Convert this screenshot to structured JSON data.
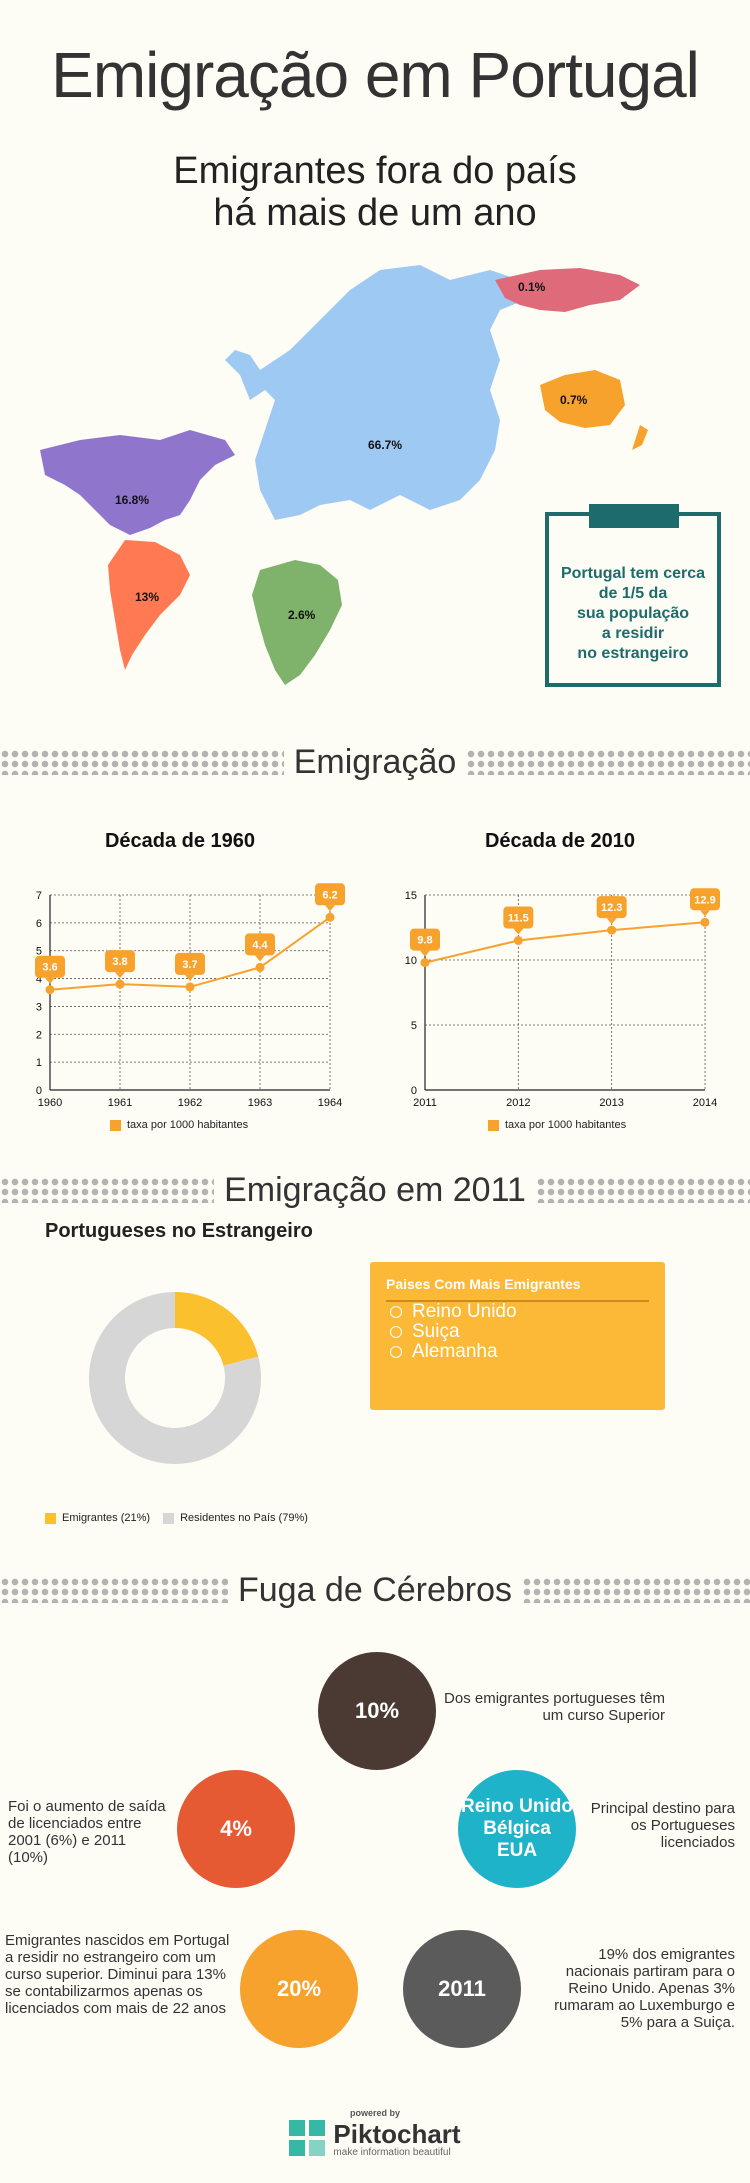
{
  "header": {
    "title": "Emigração em Portugal",
    "subtitle_line1": "Emigrantes fora do país",
    "subtitle_line2": "há mais de um ano"
  },
  "map": {
    "regions": [
      {
        "name": "north-america",
        "value": "16.8%",
        "color": "#8f76cc"
      },
      {
        "name": "south-america",
        "value": "13%",
        "color": "#ff7a52"
      },
      {
        "name": "europe",
        "value": "66.7%",
        "color": "#9ec9f3"
      },
      {
        "name": "africa",
        "value": "2.6%",
        "color": "#7fb26a"
      },
      {
        "name": "asia",
        "value": "0.1%",
        "color": "#df6a7a"
      },
      {
        "name": "oceania",
        "value": "0.7%",
        "color": "#f6a22d"
      }
    ],
    "callout_line1": "Portugal tem cerca",
    "callout_line2": "de 1/5 da",
    "callout_line3": "sua população",
    "callout_line4": "a residir",
    "callout_line5": "no estrangeiro"
  },
  "sections": {
    "emigracao": "Emigração",
    "emigracao2011": "Emigração em 2011",
    "fuga": "Fuga de Cérebros"
  },
  "chart_data": [
    {
      "type": "line",
      "title": "Década de 1960",
      "x": [
        1960,
        1961,
        1962,
        1963,
        1964
      ],
      "series": [
        {
          "name": "taxa por 1000 habitantes",
          "values": [
            3.6,
            3.8,
            3.7,
            4.4,
            6.2
          ]
        }
      ],
      "ylim": [
        0,
        7
      ],
      "yticks": [
        0,
        1,
        2,
        3,
        4,
        5,
        6,
        7
      ],
      "grid": true,
      "legend": "bottom",
      "color": "#f6a22d"
    },
    {
      "type": "line",
      "title": "Década de 2010",
      "x": [
        2011,
        2012,
        2013,
        2014
      ],
      "series": [
        {
          "name": "taxa por 1000 habitantes",
          "values": [
            9.8,
            11.5,
            12.3,
            12.9
          ]
        }
      ],
      "ylim": [
        0,
        15
      ],
      "yticks": [
        0,
        5,
        10,
        15
      ],
      "grid": true,
      "legend": "bottom",
      "color": "#f6a22d"
    },
    {
      "type": "pie",
      "title": "Portugueses no Estrangeiro",
      "categories": [
        "Emigrantes (21%)",
        "Residentes no País (79%)"
      ],
      "values": [
        21,
        79
      ],
      "colors": [
        "#fbc02d",
        "#d6d6d6"
      ],
      "legend": "bottom"
    }
  ],
  "countries_box": {
    "heading": "Paises Com Mais Emigrantes",
    "items": [
      "Reino Unido",
      "Suiça",
      "Alemanha"
    ]
  },
  "brain_drain": [
    {
      "value": "10%",
      "color": "#4a3a33",
      "text": "Dos emigrantes portugueses têm um curso Superior"
    },
    {
      "value": "4%",
      "color": "#e55a32",
      "text": "Foi o aumento de saída de licenciados entre 2001 (6%) e 2011 (10%)"
    },
    {
      "value_line1": "Reino Unido",
      "value_line2": "Bélgica",
      "value_line3": "EUA",
      "color": "#1fb3c9",
      "text": "Principal destino para os Portugueses licenciados"
    },
    {
      "value": "20%",
      "color": "#f6a22d",
      "text": "Emigrantes nascidos em Portugal a residir no estrangeiro com um curso superior. Diminui para 13% se contabilizarmos apenas os licenciados com mais de 22 anos"
    },
    {
      "value": "2011",
      "color": "#5b5b5b",
      "text": "19% dos emigrantes nacionais partiram para o Reino Unido. Apenas 3% rumaram ao Luxemburgo e 5% para a Suiça."
    }
  ],
  "footer": {
    "powered": "powered by",
    "brand": "Piktochart",
    "tagline": "make information beautiful"
  }
}
